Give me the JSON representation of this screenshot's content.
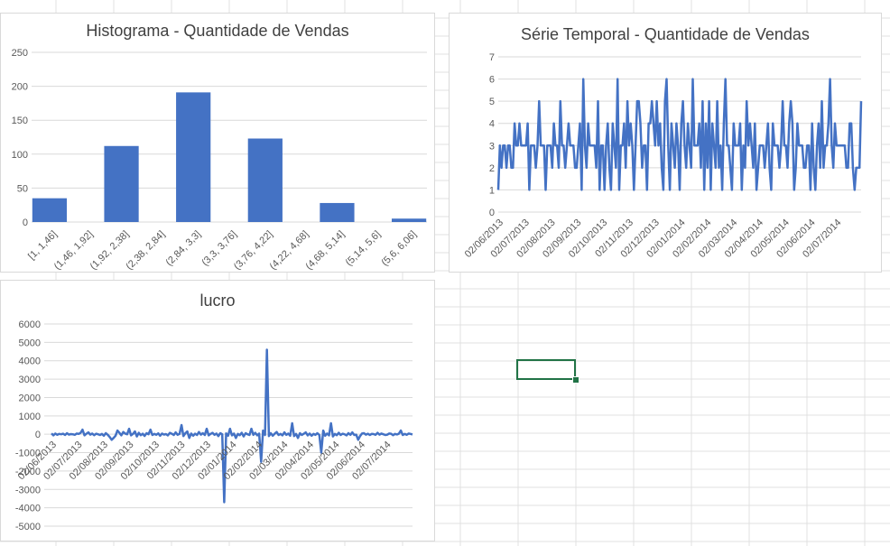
{
  "colors": {
    "series": "#4472c4",
    "grid": "#d9d9d9",
    "axis_text": "#595959",
    "title": "#404040",
    "selection": "#217346",
    "sheet_grid": "#e1e1e1"
  },
  "sheet": {
    "selected_cell_state": "selected"
  },
  "charts": {
    "histogram_title": "Histograma - Quantidade de Vendas",
    "timeseries_title": "Série Temporal - Quantidade de Vendas",
    "lucro_title": "lucro"
  },
  "chart_data": [
    {
      "type": "bar",
      "title": "Histograma - Quantidade de Vendas",
      "categories": [
        "[1, 1,46]",
        "(1,46, 1,92]",
        "(1,92, 2,38]",
        "(2,38, 2,84]",
        "(2,84, 3,3]",
        "(3,3, 3,76]",
        "(3,76, 4,22]",
        "(4,22, 4,68]",
        "(4,68, 5,14]",
        "(5,14, 5,6]",
        "(5,6, 6,06]"
      ],
      "values": [
        35,
        0,
        112,
        0,
        191,
        0,
        123,
        0,
        28,
        0,
        5
      ],
      "ylim": [
        0,
        250
      ],
      "yticks": [
        0,
        50,
        100,
        150,
        200,
        250
      ],
      "grid": true
    },
    {
      "type": "line",
      "title": "Série Temporal - Quantidade de Vendas",
      "x_labels": [
        "02/06/2013",
        "02/07/2013",
        "02/08/2013",
        "02/09/2013",
        "02/10/2013",
        "02/11/2013",
        "02/12/2013",
        "02/01/2014",
        "02/02/2014",
        "02/03/2014",
        "02/04/2014",
        "02/05/2014",
        "02/06/2014",
        "02/07/2014"
      ],
      "values": [
        1,
        3,
        2,
        3,
        3,
        2,
        3,
        3,
        2,
        2,
        4,
        3,
        3,
        4,
        3,
        3,
        3,
        3,
        4,
        1,
        3,
        3,
        3,
        2,
        3,
        5,
        3,
        3,
        3,
        1,
        3,
        3,
        3,
        2,
        4,
        3,
        3,
        2,
        5,
        3,
        3,
        2,
        3,
        4,
        3,
        3,
        3,
        2,
        2,
        3,
        4,
        1,
        6,
        3,
        2,
        4,
        3,
        3,
        3,
        3,
        2,
        5,
        1,
        3,
        3,
        1,
        3,
        4,
        2,
        1,
        4,
        3,
        2,
        6,
        1,
        3,
        3,
        4,
        2,
        5,
        3,
        4,
        3,
        1,
        3,
        5,
        5,
        4,
        2,
        3,
        3,
        1,
        4,
        4,
        5,
        4,
        3,
        5,
        3,
        4,
        2,
        1,
        5,
        6,
        3,
        1,
        4,
        3,
        2,
        4,
        3,
        1,
        4,
        5,
        3,
        2,
        4,
        3,
        2,
        6,
        3,
        3,
        3,
        4,
        2,
        5,
        1,
        4,
        2,
        5,
        1,
        4,
        3,
        2,
        5,
        2,
        3,
        1,
        4,
        6,
        3,
        3,
        2,
        1,
        4,
        3,
        3,
        3,
        4,
        1,
        3,
        2,
        5,
        3,
        4,
        3,
        2,
        4,
        1,
        2,
        3,
        3,
        3,
        2,
        3,
        4,
        2,
        1,
        4,
        3,
        3,
        3,
        2,
        3,
        5,
        3,
        3,
        2,
        4,
        5,
        4,
        1,
        2,
        4,
        3,
        3,
        3,
        2,
        2,
        3,
        3,
        1,
        4,
        2,
        1,
        3,
        4,
        2,
        5,
        2,
        3,
        3,
        4,
        6,
        3,
        2,
        4,
        3,
        3,
        3,
        3,
        3,
        3,
        2,
        2,
        4,
        4,
        2,
        1,
        2,
        2,
        2,
        5
      ],
      "ylim": [
        0,
        7
      ],
      "yticks": [
        0,
        1,
        2,
        3,
        4,
        5,
        6,
        7
      ],
      "grid": true
    },
    {
      "type": "line",
      "title": "lucro",
      "x_labels": [
        "02/06/2013",
        "02/07/2013",
        "02/08/2013",
        "02/09/2013",
        "02/10/2013",
        "02/11/2013",
        "02/12/2013",
        "02/01/2014",
        "02/02/2014",
        "02/03/2014",
        "02/04/2014",
        "02/05/2014",
        "02/06/2014",
        "02/07/2014"
      ],
      "values": [
        50,
        -60,
        40,
        -30,
        20,
        0,
        30,
        -40,
        60,
        -20,
        10,
        0,
        -30,
        40,
        20,
        80,
        250,
        -60,
        30,
        100,
        -20,
        40,
        -50,
        30,
        0,
        -40,
        20,
        -80,
        60,
        -30,
        -150,
        -300,
        -200,
        -80,
        200,
        80,
        -60,
        120,
        40,
        0,
        300,
        -60,
        20,
        150,
        -120,
        80,
        -50,
        30,
        -90,
        60,
        0,
        250,
        -40,
        20,
        -30,
        50,
        -80,
        40,
        -20,
        10,
        -60,
        80,
        30,
        -40,
        100,
        -30,
        20,
        500,
        -100,
        60,
        150,
        -200,
        40,
        -80,
        30,
        -40,
        120,
        -20,
        60,
        -40,
        300,
        -60,
        20,
        80,
        -30,
        40,
        -100,
        60,
        0,
        -3700,
        50,
        -80,
        300,
        -60,
        40,
        -200,
        20,
        -50,
        80,
        -120,
        60,
        0,
        -40,
        300,
        -30,
        80,
        -60,
        40,
        -1500,
        200,
        -40,
        4600,
        -100,
        60,
        -80,
        30,
        120,
        -40,
        20,
        -60,
        100,
        -30,
        40,
        -80,
        600,
        -100,
        20,
        -200,
        60,
        -40,
        30,
        100,
        -60,
        40,
        -80,
        20,
        -30,
        60,
        -40,
        -1000,
        200,
        -80,
        40,
        -60,
        600,
        -120,
        20,
        -50,
        80,
        -40,
        30,
        0,
        -60,
        60,
        -30,
        100,
        -40,
        -20,
        -300,
        -100,
        40,
        60,
        -20,
        30,
        -40,
        20,
        10,
        -30,
        80,
        -20,
        40,
        0,
        -40,
        -20,
        40,
        30,
        -50,
        20,
        -10,
        30,
        200,
        -40,
        20,
        -30,
        40,
        20,
        -10
      ],
      "ylim": [
        -5000,
        6000
      ],
      "yticks": [
        -5000,
        -4000,
        -3000,
        -2000,
        -1000,
        0,
        1000,
        2000,
        3000,
        4000,
        5000,
        6000
      ],
      "grid": true
    }
  ]
}
